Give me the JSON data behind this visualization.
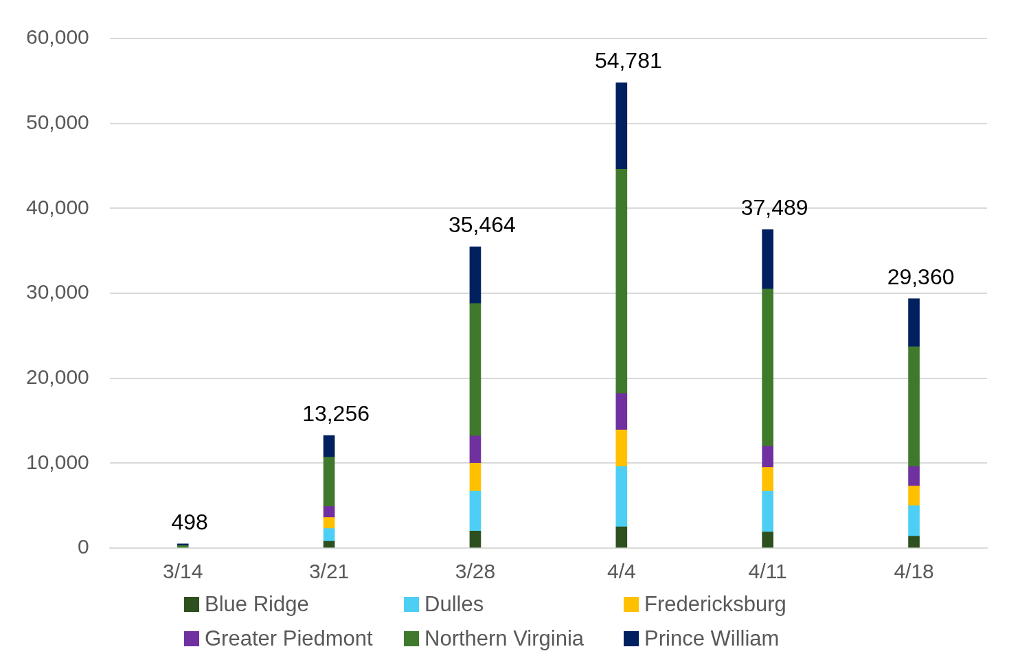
{
  "chart_data": {
    "type": "bar",
    "stacked": true,
    "categories": [
      "3/14",
      "3/21",
      "3/28",
      "4/4",
      "4/11",
      "4/18"
    ],
    "series": [
      {
        "name": "Blue Ridge",
        "color": "#2e4f1e",
        "values": [
          null,
          800,
          2000,
          2500,
          1900,
          1400
        ]
      },
      {
        "name": "Dulles",
        "color": "#4dcff5",
        "values": [
          null,
          1500,
          4700,
          7100,
          4800,
          3600
        ]
      },
      {
        "name": "Fredericksburg",
        "color": "#ffc000",
        "values": [
          null,
          1300,
          3300,
          4300,
          2800,
          2300
        ]
      },
      {
        "name": "Greater Piedmont",
        "color": "#7030a0",
        "values": [
          null,
          1300,
          3200,
          4300,
          2500,
          2300
        ]
      },
      {
        "name": "Northern Virginia",
        "color": "#3f7a2c",
        "values": [
          300,
          5800,
          15600,
          26400,
          18500,
          14100
        ]
      },
      {
        "name": "Prince William",
        "color": "#002060",
        "values": [
          198,
          2556,
          6664,
          10181,
          6989,
          5660
        ]
      }
    ],
    "totals": [
      "498",
      "13,256",
      "35,464",
      "54,781",
      "37,489",
      "29,360"
    ],
    "ylim": [
      0,
      60000
    ],
    "yticks": [
      {
        "value": 0,
        "label": "0"
      },
      {
        "value": 10000,
        "label": "10,000"
      },
      {
        "value": 20000,
        "label": "20,000"
      },
      {
        "value": 30000,
        "label": "30,000"
      },
      {
        "value": 40000,
        "label": "40,000"
      },
      {
        "value": 50000,
        "label": "50,000"
      },
      {
        "value": 60000,
        "label": "60,000"
      }
    ],
    "grid": "y",
    "legend": "bottom"
  }
}
